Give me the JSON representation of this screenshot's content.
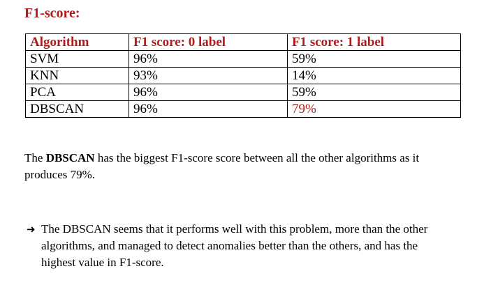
{
  "heading": "F1-score:",
  "colors": {
    "accent": "#b01c1c",
    "text": "#000000"
  },
  "table": {
    "headers": [
      "Algorithm",
      "F1 score: 0 label",
      "F1 score: 1 label"
    ],
    "rows": [
      {
        "algorithm": "SVM",
        "label0": "96%",
        "label1": "59%"
      },
      {
        "algorithm": "KNN",
        "label0": "93%",
        "label1": "14%"
      },
      {
        "algorithm": "PCA",
        "label0": "96%",
        "label1": "59%"
      },
      {
        "algorithm": "DBSCAN",
        "label0": "96%",
        "label1": "79%"
      }
    ]
  },
  "paragraph": {
    "prefix": "The ",
    "bold": "DBSCAN",
    "suffix": " has the biggest F1-score score between all the other algorithms as it produces 79%."
  },
  "conclusion": {
    "icon": "right-arrow-icon",
    "text": "The DBSCAN seems that it performs well with this problem, more than the other algorithms, and managed to detect anomalies better than the others, and has the highest value in F1-score."
  }
}
